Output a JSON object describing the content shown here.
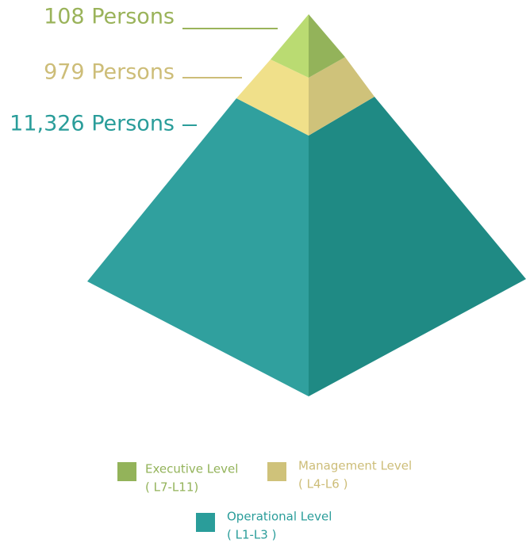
{
  "levels": [
    {
      "label": "108 Persons",
      "name": "Executive Level",
      "range": "( L7-L11)"
    },
    {
      "label": "979 Persons",
      "name": "Management Level",
      "range": "( L4-L6 )"
    },
    {
      "label": "11,326 Persons",
      "name": "Operational Level",
      "range": "( L1-L3 )"
    }
  ]
}
